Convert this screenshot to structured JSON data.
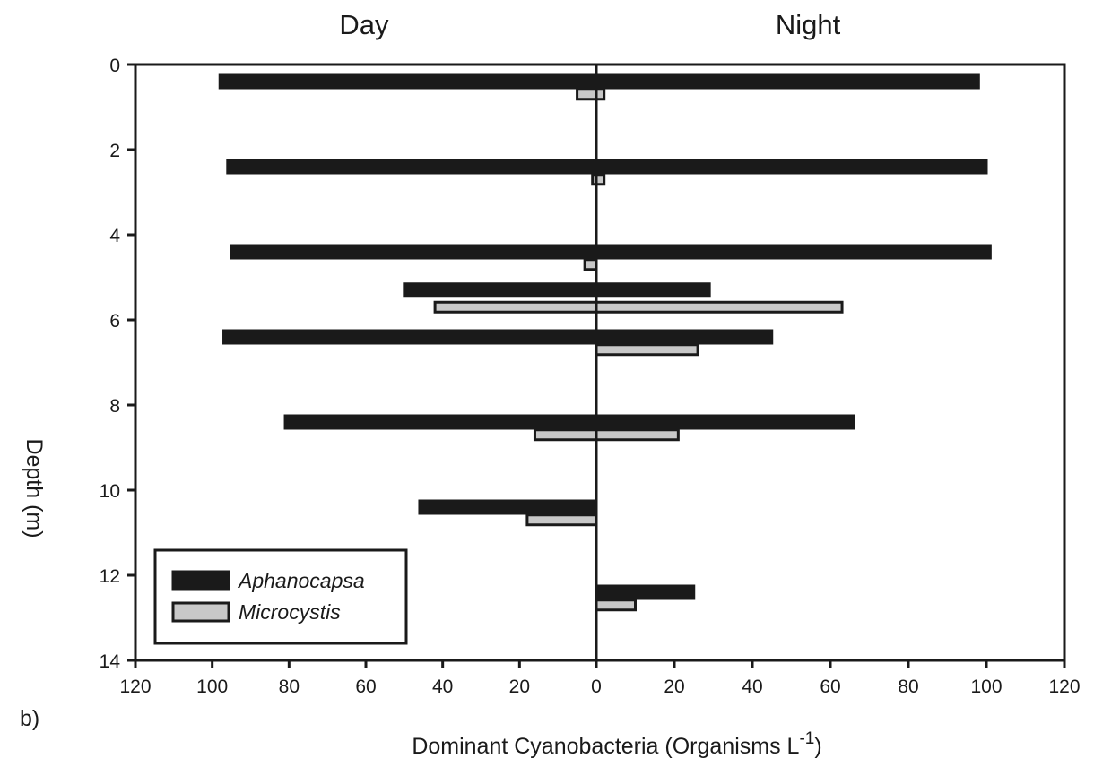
{
  "chart_data": {
    "type": "bar",
    "orientation": "horizontal-back-to-back",
    "left_title": "Day",
    "right_title": "Night",
    "xlabel": "Dominant Cyanobacteria (Organisms L",
    "xlabel_superscript": "-1",
    "xlabel_suffix": ")",
    "ylabel": "Depth (m)",
    "panel_label": "b)",
    "ylim": [
      0,
      14
    ],
    "xlim_left": [
      120,
      0
    ],
    "xlim_right": [
      0,
      120
    ],
    "y_ticks": [
      0,
      2,
      4,
      6,
      8,
      10,
      12,
      14
    ],
    "x_ticks_left": [
      120,
      100,
      80,
      60,
      40,
      20,
      0
    ],
    "x_ticks_right": [
      20,
      40,
      60,
      80,
      100,
      120
    ],
    "legend_position": "bottom-left",
    "grid": false,
    "series": [
      {
        "name": "Aphanocapsa",
        "color": "#1a1a1a",
        "points": [
          {
            "depth": 0.4,
            "day": 98,
            "night": 98
          },
          {
            "depth": 2.4,
            "day": 96,
            "night": 100
          },
          {
            "depth": 4.4,
            "day": 95,
            "night": 101
          },
          {
            "depth": 5.3,
            "day": 50,
            "night": 29
          },
          {
            "depth": 6.4,
            "day": 97,
            "night": 45
          },
          {
            "depth": 8.4,
            "day": 81,
            "night": 66
          },
          {
            "depth": 10.4,
            "day": 46,
            "night": 0
          },
          {
            "depth": 12.4,
            "day": 0,
            "night": 25
          }
        ]
      },
      {
        "name": "Microcystis",
        "color": "#c8c8c8",
        "points": [
          {
            "depth": 0.7,
            "day": 5,
            "night": 2
          },
          {
            "depth": 2.7,
            "day": 1,
            "night": 2
          },
          {
            "depth": 4.7,
            "day": 3,
            "night": 0
          },
          {
            "depth": 5.7,
            "day": 42,
            "night": 63
          },
          {
            "depth": 6.7,
            "day": 0,
            "night": 26
          },
          {
            "depth": 8.7,
            "day": 16,
            "night": 21
          },
          {
            "depth": 10.7,
            "day": 18,
            "night": 0
          },
          {
            "depth": 12.7,
            "day": 0,
            "night": 10
          }
        ]
      }
    ]
  }
}
